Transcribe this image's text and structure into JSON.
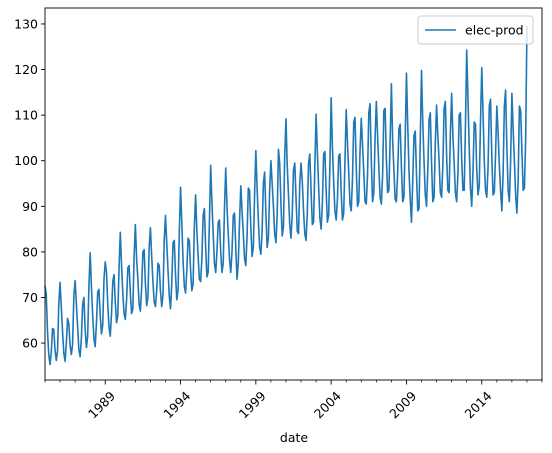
{
  "chart_data": {
    "type": "line",
    "title": "",
    "xlabel": "date",
    "ylabel": "",
    "xlim": [
      "1985-01",
      "2018-01"
    ],
    "ylim": [
      51.9,
      133.5
    ],
    "yticks": [
      60,
      70,
      80,
      90,
      100,
      110,
      120,
      130
    ],
    "xticks": [
      "1989",
      "1994",
      "1999",
      "2004",
      "2009",
      "2014"
    ],
    "xtick_rotation": 45,
    "grid": false,
    "legend": {
      "position": "top-right",
      "entries": [
        "elec-prod"
      ]
    },
    "x_start": "1985-01",
    "frequency": "monthly",
    "series": [
      {
        "name": "elec-prod",
        "color": "#1f77b4",
        "values": [
          72.5,
          70.7,
          62.5,
          57.5,
          55.3,
          58.0,
          63.2,
          63.0,
          58.5,
          56.2,
          58.2,
          68.8,
          73.3,
          67.8,
          62.5,
          57.8,
          56.0,
          60.0,
          65.4,
          64.2,
          59.5,
          57.5,
          59.8,
          70.5,
          73.7,
          68.5,
          63.5,
          58.5,
          57.0,
          61.2,
          68.5,
          70.0,
          63.0,
          59.0,
          61.5,
          72.5,
          79.8,
          72.3,
          66.0,
          61.0,
          59.2,
          64.5,
          71.2,
          71.8,
          66.0,
          62.0,
          64.0,
          74.0,
          77.8,
          75.5,
          68.5,
          63.5,
          61.5,
          66.5,
          73.5,
          75.0,
          69.0,
          64.5,
          66.0,
          76.5,
          84.3,
          77.0,
          71.0,
          66.5,
          65.2,
          69.5,
          76.5,
          77.0,
          71.0,
          66.5,
          67.5,
          79.0,
          86.0,
          78.5,
          74.0,
          68.5,
          67.0,
          72.0,
          80.0,
          80.5,
          73.0,
          68.2,
          70.0,
          81.0,
          85.3,
          79.0,
          73.5,
          69.0,
          68.0,
          71.5,
          77.5,
          77.0,
          71.5,
          68.0,
          70.5,
          82.5,
          88.0,
          82.0,
          76.0,
          70.5,
          67.5,
          73.0,
          82.0,
          82.5,
          75.0,
          69.5,
          71.5,
          84.0,
          94.2,
          86.5,
          78.0,
          72.5,
          71.0,
          76.0,
          83.0,
          82.5,
          76.0,
          71.5,
          73.0,
          85.5,
          92.5,
          84.5,
          79.0,
          74.0,
          73.5,
          78.5,
          88.0,
          89.5,
          81.0,
          74.5,
          75.5,
          86.5,
          99.0,
          91.0,
          84.0,
          77.5,
          75.5,
          80.0,
          86.5,
          87.0,
          80.0,
          75.5,
          77.5,
          89.5,
          98.4,
          90.0,
          84.0,
          78.5,
          75.5,
          80.0,
          88.0,
          88.5,
          81.0,
          74.0,
          77.5,
          86.5,
          94.5,
          89.0,
          84.0,
          78.5,
          77.0,
          83.5,
          94.0,
          93.5,
          85.5,
          79.0,
          81.0,
          92.5,
          102.2,
          94.0,
          87.0,
          81.0,
          79.5,
          84.5,
          95.0,
          97.5,
          88.5,
          81.0,
          83.0,
          93.5,
          100.0,
          95.0,
          90.0,
          84.0,
          82.0,
          88.0,
          102.5,
          99.5,
          90.5,
          83.5,
          85.5,
          101.0,
          109.2,
          99.0,
          92.5,
          86.0,
          83.0,
          88.5,
          98.0,
          99.5,
          92.0,
          84.5,
          84.0,
          95.0,
          99.5,
          95.5,
          89.0,
          84.0,
          82.5,
          88.5,
          99.5,
          101.5,
          93.5,
          86.0,
          86.5,
          98.5,
          110.2,
          102.0,
          94.5,
          87.5,
          85.0,
          90.5,
          101.5,
          102.0,
          93.5,
          86.5,
          88.0,
          99.0,
          113.8,
          103.0,
          95.5,
          89.0,
          87.0,
          91.5,
          101.0,
          101.5,
          93.0,
          87.0,
          88.5,
          100.0,
          111.2,
          104.0,
          97.5,
          90.5,
          89.0,
          96.0,
          108.5,
          109.5,
          98.5,
          90.0,
          91.0,
          102.0,
          109.3,
          103.5,
          97.5,
          91.0,
          90.5,
          97.0,
          110.5,
          112.5,
          100.0,
          91.0,
          93.0,
          105.0,
          113.0,
          105.5,
          98.5,
          92.0,
          90.5,
          97.0,
          111.0,
          111.5,
          100.5,
          93.0,
          93.5,
          104.5,
          116.9,
          104.5,
          98.0,
          91.5,
          91.0,
          97.5,
          107.0,
          108.0,
          98.5,
          91.0,
          92.0,
          104.5,
          119.2,
          108.0,
          98.0,
          91.5,
          86.5,
          95.5,
          105.5,
          106.5,
          97.0,
          89.0,
          89.5,
          104.5,
          119.8,
          108.5,
          100.0,
          92.5,
          90.0,
          98.0,
          109.0,
          110.5,
          99.5,
          91.0,
          92.0,
          104.0,
          112.2,
          105.5,
          100.0,
          93.0,
          92.0,
          99.0,
          111.5,
          113.0,
          101.0,
          93.5,
          93.0,
          106.0,
          114.8,
          105.5,
          99.5,
          93.0,
          91.0,
          97.0,
          110.0,
          110.5,
          100.5,
          93.5,
          93.5,
          107.5,
          124.3,
          114.0,
          103.0,
          94.0,
          90.0,
          97.5,
          108.5,
          108.0,
          98.0,
          92.5,
          94.5,
          108.5,
          120.4,
          110.5,
          100.0,
          93.5,
          92.0,
          98.5,
          112.0,
          113.5,
          101.0,
          92.5,
          93.0,
          101.5,
          112.0,
          106.5,
          99.0,
          93.5,
          89.0,
          97.0,
          112.0,
          115.5,
          103.0,
          93.5,
          91.0,
          100.0,
          114.8,
          107.0,
          100.0,
          92.5,
          88.5,
          95.5,
          112.0,
          111.0,
          102.0,
          93.5,
          94.0,
          105.0,
          129.4
        ]
      }
    ]
  }
}
